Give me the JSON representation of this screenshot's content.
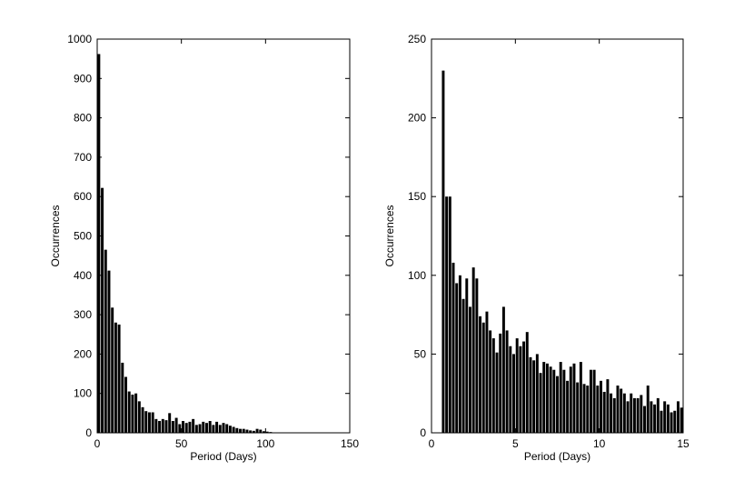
{
  "chart_data": [
    {
      "type": "histogram",
      "x_label": "Period (Days)",
      "y_label": "Occurrences",
      "color": "#000000",
      "bins": [
        0,
        2,
        4,
        6,
        8,
        10,
        12,
        14,
        16,
        18,
        20,
        22,
        24,
        26,
        28,
        30,
        32,
        34,
        36,
        38,
        40,
        42,
        44,
        46,
        48,
        50,
        52,
        54,
        56,
        58,
        60,
        62,
        64,
        66,
        68,
        70,
        72,
        74,
        76,
        78,
        80,
        82,
        84,
        86,
        88,
        90,
        92,
        94,
        96,
        98,
        100,
        102,
        104,
        106,
        108,
        110
      ],
      "values": [
        962,
        622,
        465,
        412,
        318,
        280,
        275,
        178,
        142,
        105,
        97,
        100,
        80,
        65,
        55,
        52,
        52,
        35,
        30,
        35,
        32,
        50,
        30,
        38,
        22,
        30,
        25,
        28,
        35,
        20,
        22,
        28,
        25,
        30,
        20,
        28,
        20,
        25,
        22,
        18,
        15,
        12,
        10,
        10,
        8,
        6,
        5,
        10,
        8,
        4,
        3,
        2,
        1,
        1,
        1
      ],
      "xlim": [
        0,
        150
      ],
      "xticks": [
        0,
        50,
        100,
        150
      ],
      "ylim": [
        0,
        1000
      ],
      "yticks": [
        0,
        100,
        200,
        300,
        400,
        500,
        600,
        700,
        800,
        900,
        1000
      ]
    },
    {
      "type": "histogram",
      "x_label": "Period (Days)",
      "y_label": "Occurrences",
      "color": "#000000",
      "bins": [
        0.6,
        0.8,
        1,
        1.2,
        1.4,
        1.6,
        1.8,
        2,
        2.2,
        2.4,
        2.6,
        2.8,
        3,
        3.2,
        3.4,
        3.6,
        3.8,
        4,
        4.2,
        4.4,
        4.6,
        4.8,
        5,
        5.2,
        5.4,
        5.6,
        5.8,
        6,
        6.2,
        6.4,
        6.6,
        6.8,
        7,
        7.2,
        7.4,
        7.6,
        7.8,
        8,
        8.2,
        8.4,
        8.6,
        8.8,
        9,
        9.2,
        9.4,
        9.6,
        9.8,
        10,
        10.2,
        10.4,
        10.6,
        10.8,
        11,
        11.2,
        11.4,
        11.6,
        11.8,
        12,
        12.2,
        12.4,
        12.6,
        12.8,
        13,
        13.2,
        13.4,
        13.6,
        13.8,
        14,
        14.2,
        14.4,
        14.6,
        14.8,
        15
      ],
      "values": [
        230,
        150,
        150,
        108,
        95,
        100,
        85,
        98,
        80,
        105,
        98,
        74,
        70,
        77,
        65,
        60,
        51,
        63,
        80,
        65,
        55,
        50,
        60,
        55,
        58,
        64,
        48,
        46,
        50,
        38,
        45,
        44,
        42,
        40,
        36,
        45,
        40,
        33,
        42,
        44,
        32,
        45,
        31,
        30,
        40,
        40,
        30,
        33,
        26,
        34,
        25,
        22,
        30,
        28,
        25,
        20,
        25,
        22,
        22,
        24,
        17,
        30,
        20,
        18,
        22,
        14,
        20,
        18,
        13,
        14,
        20,
        16
      ],
      "xlim": [
        0,
        15
      ],
      "xticks": [
        0,
        5,
        10,
        15
      ],
      "ylim": [
        0,
        250
      ],
      "yticks": [
        0,
        50,
        100,
        150,
        200,
        250
      ]
    }
  ]
}
